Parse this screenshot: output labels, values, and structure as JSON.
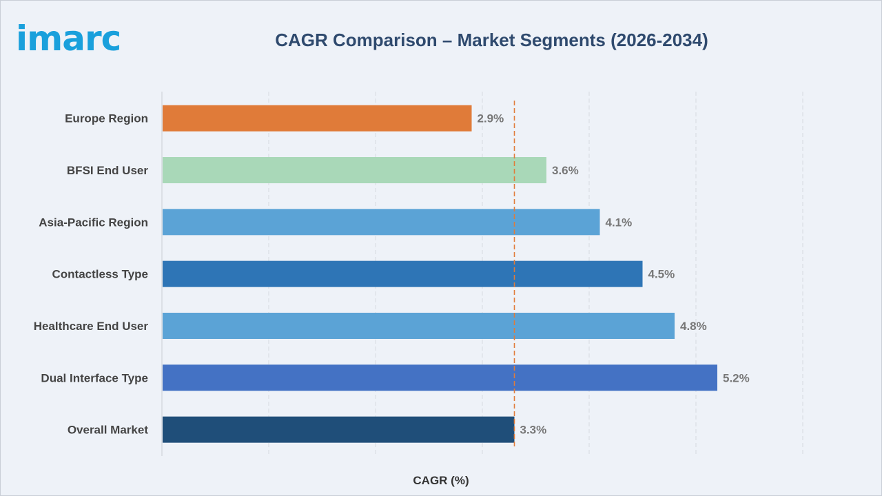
{
  "logo_text": "imarc",
  "chart_data": {
    "type": "bar",
    "orientation": "horizontal",
    "title": "CAGR Comparison – Market Segments (2026-2034)",
    "xlabel": "CAGR (%)",
    "ylabel": "",
    "categories": [
      "Europe Region",
      "BFSI End User",
      "Asia-Pacific Region",
      "Contactless Type",
      "Healthcare End User",
      "Dual Interface Type",
      "Overall Market"
    ],
    "values": [
      2.9,
      3.6,
      4.1,
      4.5,
      4.8,
      5.2,
      3.3
    ],
    "value_labels": [
      "2.9%",
      "3.6%",
      "4.1%",
      "4.5%",
      "4.8%",
      "5.2%",
      "3.3%"
    ],
    "colors": [
      "#e07b39",
      "#a9d8b8",
      "#5ba3d6",
      "#2e75b6",
      "#5ba3d6",
      "#4472c4",
      "#1f4e79"
    ],
    "xlim": [
      0,
      6
    ],
    "reference_line": {
      "value": 3.3,
      "style": "dashed",
      "color": "#e07b39"
    },
    "grid": "vertical",
    "legend": "none"
  }
}
